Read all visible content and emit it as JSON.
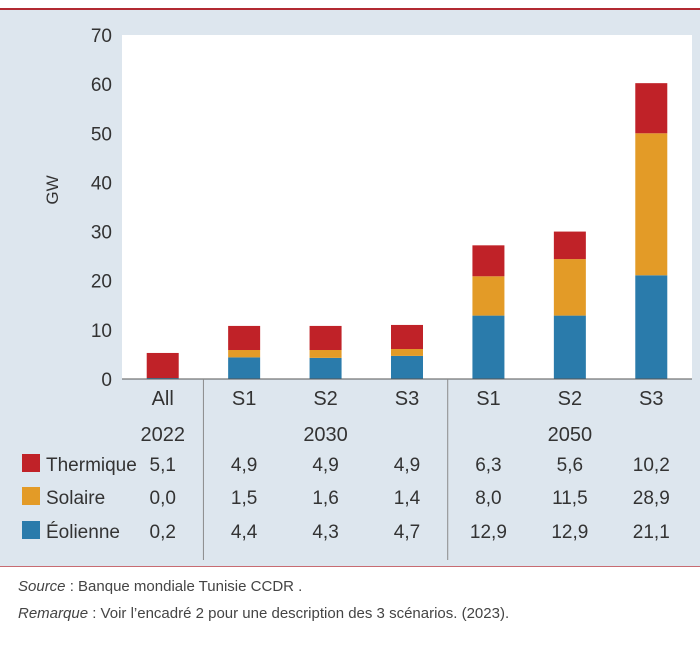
{
  "chart_data": {
    "type": "bar",
    "stacked": true,
    "ylabel": "GW",
    "ylim": [
      0,
      70
    ],
    "yticks": [
      0,
      10,
      20,
      30,
      40,
      50,
      60,
      70
    ],
    "grid": false,
    "categories": [
      "All",
      "S1",
      "S2",
      "S3",
      "S1",
      "S2",
      "S3"
    ],
    "groups": [
      {
        "label": "2022",
        "count": 1
      },
      {
        "label": "2030",
        "count": 3
      },
      {
        "label": "2050",
        "count": 3
      }
    ],
    "series": [
      {
        "name": "Éolienne",
        "color": "#2a7bab",
        "values": [
          "0,2",
          "4,4",
          "4,3",
          "4,7",
          "12,9",
          "12,9",
          "21,1"
        ]
      },
      {
        "name": "Solaire",
        "color": "#e39b27",
        "values": [
          "0,0",
          "1,5",
          "1,6",
          "1,4",
          "8,0",
          "11,5",
          "28,9"
        ]
      },
      {
        "name": "Thermique",
        "color": "#c02228",
        "values": [
          "5,1",
          "4,9",
          "4,9",
          "4,9",
          "6,3",
          "5,6",
          "10,2"
        ]
      }
    ],
    "table_row_order": [
      "Thermique",
      "Solaire",
      "Éolienne"
    ]
  },
  "footnotes": {
    "source_lead": "Source",
    "source_text": " : Banque mondiale Tunisie CCDR .",
    "remark_lead": "Remarque",
    "remark_text": " : Voir l’encadré 2 pour une description des 3 scénarios. (2023)."
  }
}
